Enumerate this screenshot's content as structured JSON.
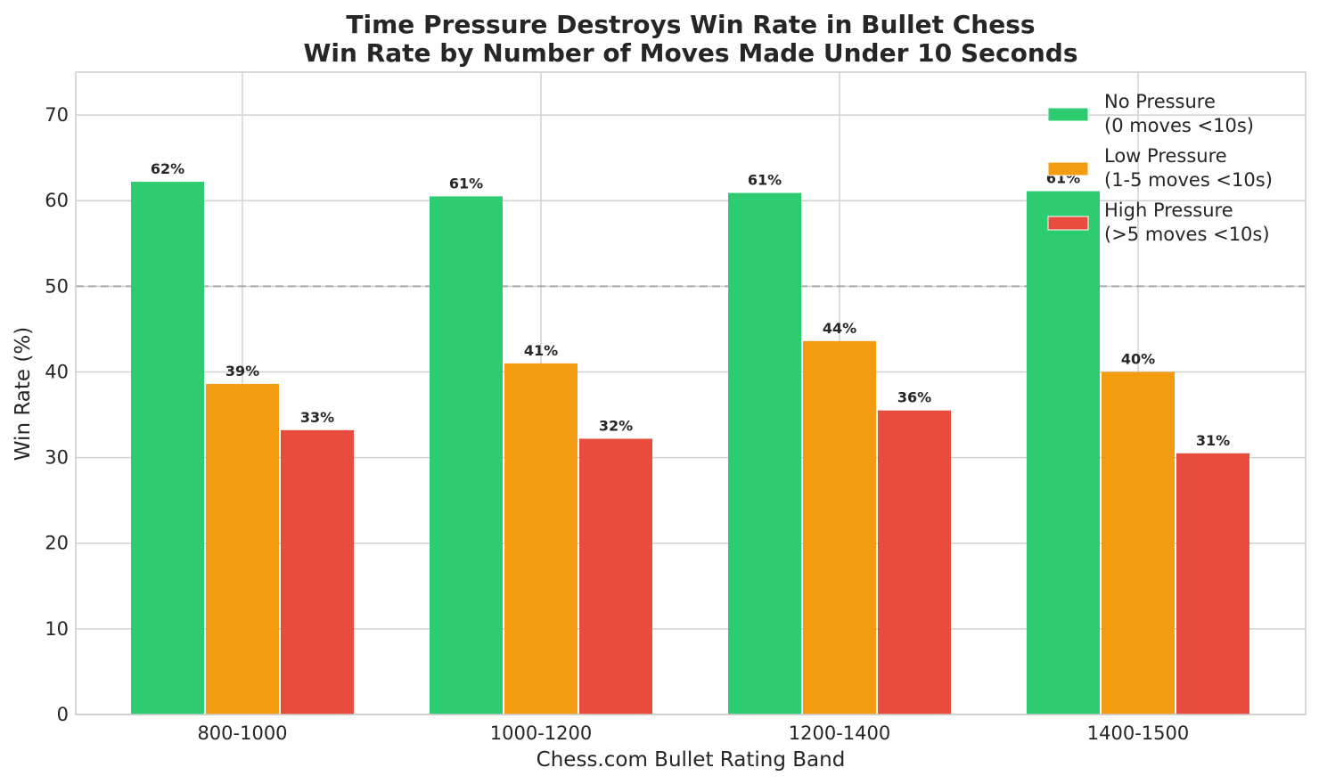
{
  "chart_data": {
    "type": "bar",
    "title": "Time Pressure Destroys Win Rate in Bullet Chess",
    "subtitle": "Win Rate by Number of Moves Made Under 10 Seconds",
    "xlabel": "Chess.com Bullet Rating Band",
    "ylabel": "Win Rate (%)",
    "ylim": [
      0,
      75
    ],
    "yticks": [
      0,
      10,
      20,
      30,
      40,
      50,
      60,
      70
    ],
    "grid": true,
    "legend_position": "top-right",
    "reference_line": {
      "value": 50,
      "style": "dashed",
      "color": "#aaaaaa"
    },
    "categories": [
      "800-1000",
      "1000-1200",
      "1200-1400",
      "1400-1500"
    ],
    "series": [
      {
        "name": "No Pressure\n(0 moves <10s)",
        "color": "#2ecc71",
        "values": [
          62.2,
          60.5,
          60.9,
          61.1
        ],
        "labels": [
          "62%",
          "61%",
          "61%",
          "61%"
        ]
      },
      {
        "name": "Low Pressure\n(1-5 moves <10s)",
        "color": "#f39c12",
        "values": [
          38.6,
          41.0,
          43.6,
          40.0
        ],
        "labels": [
          "39%",
          "41%",
          "44%",
          "40%"
        ]
      },
      {
        "name": "High Pressure\n(>5 moves <10s)",
        "color": "#e74c3c",
        "values": [
          33.2,
          32.2,
          35.5,
          30.5
        ],
        "labels": [
          "33%",
          "32%",
          "36%",
          "31%"
        ]
      }
    ]
  }
}
